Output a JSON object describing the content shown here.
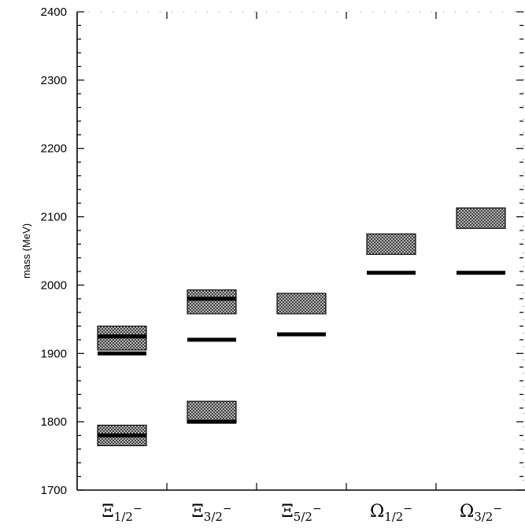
{
  "chart_data": {
    "type": "mass-spectrum",
    "title": "",
    "ylabel": "mass (MeV)",
    "xlabel": "",
    "ylim": [
      1700,
      2400
    ],
    "yticks": [
      1700,
      1800,
      1900,
      2000,
      2100,
      2200,
      2300,
      2400
    ],
    "ytick_labels": [
      "1700",
      "1800",
      "1900",
      "2000",
      "2100",
      "2200",
      "2300",
      "2400"
    ],
    "categories": [
      {
        "symbol": "Ξ",
        "sub": "1/2",
        "sup": "−"
      },
      {
        "symbol": "Ξ",
        "sub": "3/2",
        "sup": "−"
      },
      {
        "symbol": "Ξ",
        "sub": "5/2",
        "sup": "−"
      },
      {
        "symbol": "Ω",
        "sub": "1/2",
        "sup": "−"
      },
      {
        "symbol": "Ω",
        "sub": "3/2",
        "sup": "−"
      }
    ],
    "bands": [
      {
        "category": 0,
        "low": 1765,
        "high": 1795
      },
      {
        "category": 0,
        "low": 1905,
        "high": 1940
      },
      {
        "category": 1,
        "low": 1798,
        "high": 1830
      },
      {
        "category": 1,
        "low": 1958,
        "high": 1993
      },
      {
        "category": 2,
        "low": 1958,
        "high": 1988
      },
      {
        "category": 3,
        "low": 2045,
        "high": 2075
      },
      {
        "category": 4,
        "low": 2083,
        "high": 2113
      }
    ],
    "lines": [
      {
        "category": 0,
        "value": 1780
      },
      {
        "category": 0,
        "value": 1900
      },
      {
        "category": 0,
        "value": 1925
      },
      {
        "category": 1,
        "value": 1800
      },
      {
        "category": 1,
        "value": 1920
      },
      {
        "category": 1,
        "value": 1980
      },
      {
        "category": 2,
        "value": 1928
      },
      {
        "category": 3,
        "value": 2018
      },
      {
        "category": 4,
        "value": 2018
      }
    ],
    "grid": false,
    "band_fill": "crosshatch"
  }
}
